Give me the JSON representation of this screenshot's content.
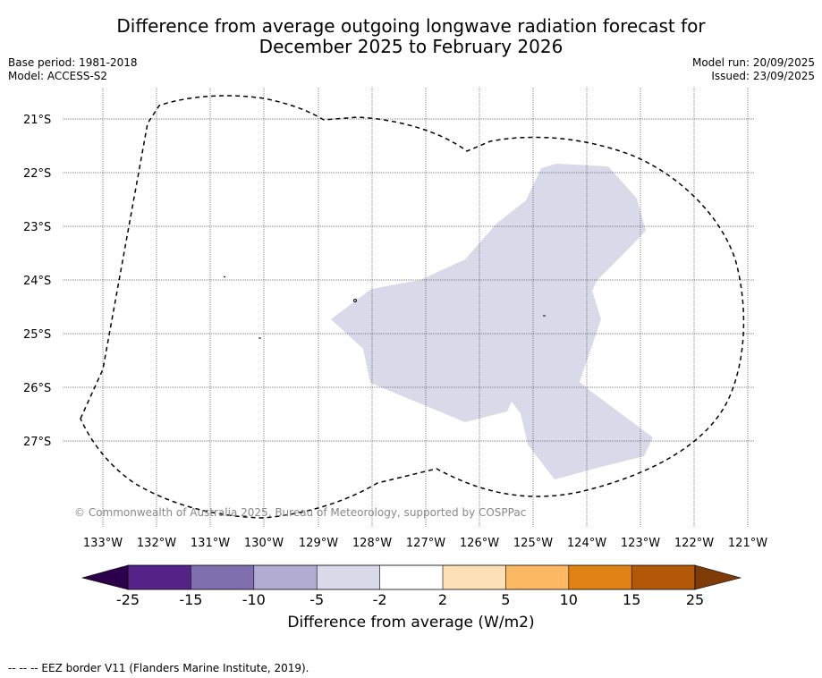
{
  "title": {
    "line1": "Difference from average outgoing longwave radiation forecast for",
    "line2": "December 2025 to February 2026"
  },
  "meta": {
    "base_period": "Base period: 1981-2018",
    "model": "Model: ACCESS-S2",
    "model_run": "Model run: 20/09/2025",
    "issued": "Issued: 23/09/2025"
  },
  "map": {
    "lat_labels": [
      "21°S",
      "22°S",
      "23°S",
      "24°S",
      "25°S",
      "26°S",
      "27°S"
    ],
    "lon_labels": [
      "133°W",
      "132°W",
      "131°W",
      "130°W",
      "129°W",
      "128°W",
      "127°W",
      "126°W",
      "125°W",
      "124°W",
      "123°W",
      "122°W",
      "121°W"
    ],
    "anomaly_category": "-5 to -2",
    "anomaly_color": "#d9d9ea",
    "copyright": "© Commonwealth of Australia 2025, Bureau of Meteorology, supported by COSPPac"
  },
  "colorbar": {
    "ticks": [
      "-25",
      "-15",
      "-10",
      "-5",
      "-2",
      "2",
      "5",
      "10",
      "15",
      "25"
    ],
    "colors": [
      "#552288",
      "#7f6fad",
      "#b2abd2",
      "#d9d9ea",
      "#ffffff",
      "#fee0b6",
      "#fdb863",
      "#e08214",
      "#b35806"
    ],
    "under_color": "#2d004b",
    "over_color": "#7f3b08",
    "label": "Difference from average (W/m2)"
  },
  "legend": {
    "eez_line": "--  --  -- EEZ border V11 (Flanders Marine Institute, 2019)."
  }
}
